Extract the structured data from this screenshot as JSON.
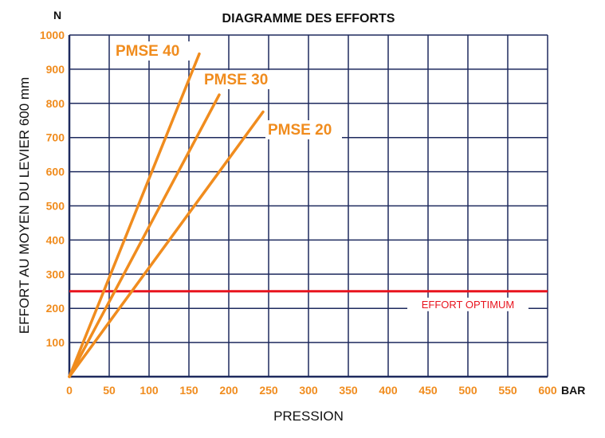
{
  "chart_data": {
    "type": "line",
    "title": "DIAGRAMME DES EFFORTS",
    "xlabel": "PRESSION",
    "ylabel": "EFFORT AU MOYEN DU LEVIER 600 mm",
    "x_unit": "BAR",
    "y_unit": "N",
    "xlim": [
      0,
      600
    ],
    "ylim": [
      0,
      1000
    ],
    "x_ticks": [
      0,
      50,
      100,
      150,
      200,
      250,
      300,
      350,
      400,
      450,
      500,
      550,
      600
    ],
    "y_ticks": [
      100,
      200,
      300,
      400,
      500,
      600,
      700,
      800,
      900,
      1000
    ],
    "grid": true,
    "series": [
      {
        "name": "PMSE 40",
        "color": "#f08c1e",
        "x": [
          0,
          163
        ],
        "y": [
          0,
          945
        ]
      },
      {
        "name": "PMSE 30",
        "color": "#f08c1e",
        "x": [
          0,
          188
        ],
        "y": [
          0,
          825
        ]
      },
      {
        "name": "PMSE 20",
        "color": "#f08c1e",
        "x": [
          0,
          243
        ],
        "y": [
          0,
          775
        ]
      }
    ],
    "reference_lines": [
      {
        "label": "EFFORT OPTIMUM",
        "y": 250,
        "color": "#e8141e"
      }
    ],
    "colors": {
      "grid": "#1e2a5e",
      "ticks": "#f08c1e",
      "text": "#111111"
    }
  }
}
